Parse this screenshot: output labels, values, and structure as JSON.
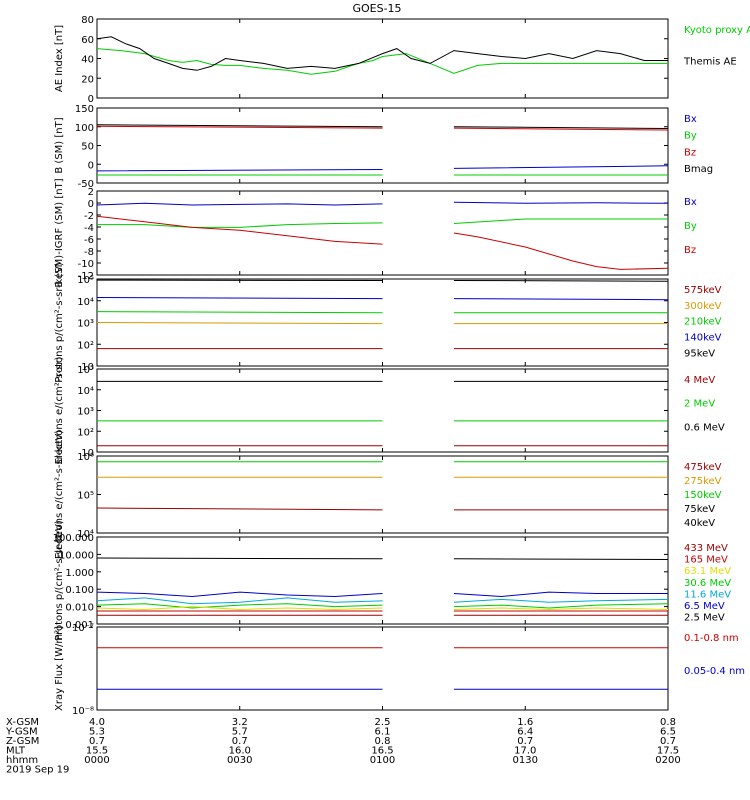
{
  "title": "GOES-15",
  "colors": {
    "black": "#000000",
    "green": "#00cc00",
    "red": "#cc0000",
    "blue": "#0000cc",
    "orange": "#dd9900",
    "yellow": "#dddd00",
    "cyan": "#00aadd",
    "purple": "#990099",
    "darkred": "#990000"
  },
  "chart_data": [
    {
      "type": "line",
      "ylabel": "AE Index [nT]",
      "ylim": [
        0,
        80
      ],
      "ticks": [
        "0",
        "20",
        "40",
        "60",
        "80"
      ],
      "legend": [
        "Kyoto proxy AE",
        "Themis AE"
      ],
      "series": [
        {
          "name": "Kyoto proxy AE",
          "color": "green",
          "x": [
            0,
            5,
            10,
            15,
            18,
            21,
            24,
            27,
            30,
            35,
            40,
            45,
            50,
            53,
            55,
            58,
            60,
            65,
            70,
            75,
            80,
            85,
            90,
            95,
            100,
            105,
            110,
            115,
            120
          ],
          "y": [
            50,
            48,
            45,
            38,
            36,
            38,
            34,
            33,
            33,
            30,
            28,
            24,
            27,
            32,
            35,
            38,
            42,
            45,
            35,
            25,
            33,
            35,
            35,
            35,
            35,
            35,
            35,
            35,
            35
          ]
        },
        {
          "name": "Themis AE",
          "color": "black",
          "x": [
            0,
            3,
            6,
            9,
            12,
            15,
            18,
            21,
            24,
            27,
            30,
            35,
            40,
            45,
            50,
            55,
            60,
            63,
            66,
            70,
            75,
            80,
            85,
            90,
            95,
            100,
            105,
            110,
            115,
            120
          ],
          "y": [
            60,
            62,
            55,
            50,
            40,
            35,
            30,
            28,
            32,
            40,
            38,
            35,
            30,
            32,
            30,
            35,
            45,
            50,
            40,
            35,
            48,
            45,
            42,
            40,
            45,
            40,
            48,
            45,
            38,
            38
          ]
        }
      ]
    },
    {
      "type": "line",
      "ylabel": "B (SM) [nT]",
      "ylim": [
        -55,
        150
      ],
      "ticks": [
        "-50",
        "0",
        "50",
        "100",
        "150"
      ],
      "legend": [
        "Bx",
        "By",
        "Bz",
        "Bmag"
      ],
      "gap": [
        60,
        75
      ],
      "series": [
        {
          "name": "Bz",
          "color": "red",
          "x": [
            0,
            60,
            75,
            120
          ],
          "y": [
            100,
            95,
            95,
            90
          ]
        },
        {
          "name": "Bmag",
          "color": "black",
          "x": [
            0,
            60,
            75,
            120
          ],
          "y": [
            104,
            99,
            99,
            94
          ]
        },
        {
          "name": "Bx",
          "color": "blue",
          "x": [
            0,
            60,
            75,
            120
          ],
          "y": [
            -22,
            -18,
            -15,
            -8
          ]
        },
        {
          "name": "By",
          "color": "green",
          "x": [
            0,
            60,
            75,
            120
          ],
          "y": [
            -33,
            -33,
            -33,
            -33
          ]
        }
      ]
    },
    {
      "type": "line",
      "ylabel": "B (SM)-IGRF (SM) [nT]",
      "ylim": [
        -12,
        3
      ],
      "ticks": [
        "-12",
        "-10",
        "-8",
        "-6",
        "-4",
        "-2",
        "0",
        "2"
      ],
      "legend": [
        "Bx",
        "By",
        "Bz"
      ],
      "gap": [
        60,
        75
      ],
      "series": [
        {
          "name": "Bx",
          "color": "blue",
          "x": [
            0,
            10,
            20,
            30,
            40,
            50,
            60,
            75,
            90,
            105,
            120
          ],
          "y": [
            0.5,
            0.8,
            0.5,
            0.6,
            0.7,
            0.5,
            0.7,
            1.0,
            0.8,
            0.9,
            0.8
          ]
        },
        {
          "name": "By",
          "color": "green",
          "x": [
            0,
            10,
            20,
            30,
            40,
            50,
            60,
            75,
            90,
            105,
            120
          ],
          "y": [
            -3,
            -3,
            -3.5,
            -3.5,
            -3,
            -2.8,
            -2.7,
            -2.8,
            -2,
            -2,
            -2
          ]
        },
        {
          "name": "Bz",
          "color": "red",
          "x": [
            0,
            10,
            20,
            30,
            40,
            50,
            60,
            75,
            80,
            90,
            100,
            105,
            110,
            120
          ],
          "y": [
            -1.5,
            -2.5,
            -3.5,
            -4,
            -5,
            -6,
            -6.5,
            -4.5,
            -5.2,
            -7,
            -9.5,
            -10.5,
            -11,
            -10.8
          ]
        }
      ]
    },
    {
      "type": "line",
      "ylabel": "Protons p/(cm²-s-sr-keV)",
      "log": true,
      "ylim": [
        1,
        5
      ],
      "ticks": [
        "10",
        "10²",
        "10³",
        "10⁴",
        "10⁵"
      ],
      "legend": [
        "575keV",
        "300keV",
        "210keV",
        "140keV",
        "95keV"
      ],
      "gap": [
        60,
        75
      ],
      "series": [
        {
          "name": "95keV",
          "color": "black",
          "x": [
            0,
            60,
            75,
            120
          ],
          "y": [
            4.95,
            4.93,
            4.93,
            4.9
          ]
        },
        {
          "name": "140keV",
          "color": "blue",
          "x": [
            0,
            60,
            75,
            120
          ],
          "y": [
            4.15,
            4.1,
            4.1,
            4.05
          ]
        },
        {
          "name": "210keV",
          "color": "green",
          "x": [
            0,
            60,
            75,
            120
          ],
          "y": [
            3.5,
            3.45,
            3.45,
            3.45
          ]
        },
        {
          "name": "300keV",
          "color": "orange",
          "x": [
            0,
            60,
            75,
            120
          ],
          "y": [
            3.0,
            2.95,
            2.95,
            2.95
          ]
        },
        {
          "name": "575keV",
          "color": "darkred",
          "x": [
            0,
            60,
            75,
            120
          ],
          "y": [
            1.8,
            1.8,
            1.8,
            1.8
          ]
        }
      ]
    },
    {
      "type": "line",
      "ylabel": "Electrons e/(cm²-s-sr)",
      "log": true,
      "ylim": [
        1,
        5
      ],
      "ticks": [
        "10",
        "10²",
        "10³",
        "10⁴",
        "10⁵"
      ],
      "legend": [
        "4 MeV",
        "2 MeV",
        "0.6 MeV"
      ],
      "gap": [
        60,
        75
      ],
      "series": [
        {
          "name": "0.6 MeV",
          "color": "black",
          "x": [
            0,
            60,
            75,
            120
          ],
          "y": [
            4.4,
            4.4,
            4.4,
            4.4
          ]
        },
        {
          "name": "2 MeV",
          "color": "green",
          "x": [
            0,
            60,
            75,
            120
          ],
          "y": [
            2.5,
            2.5,
            2.5,
            2.5
          ]
        },
        {
          "name": "4 MeV",
          "color": "darkred",
          "x": [
            0,
            60,
            75,
            120
          ],
          "y": [
            1.3,
            1.3,
            1.3,
            1.3
          ]
        }
      ]
    },
    {
      "type": "line",
      "ylabel": "Electrons e/(cm²-s-sr-keV)",
      "log": true,
      "ylim": [
        4,
        6
      ],
      "ticks": [
        "10⁴",
        "10⁵",
        "10⁶"
      ],
      "legend": [
        "475keV",
        "275keV",
        "150keV",
        "75keV",
        "40keV"
      ],
      "gap": [
        60,
        75
      ],
      "series": [
        {
          "name": "150keV",
          "color": "green",
          "x": [
            0,
            60,
            75,
            120
          ],
          "y": [
            5.85,
            5.85,
            5.85,
            5.85
          ]
        },
        {
          "name": "275keV",
          "color": "orange",
          "x": [
            0,
            60,
            75,
            120
          ],
          "y": [
            5.45,
            5.45,
            5.45,
            5.45
          ]
        },
        {
          "name": "475keV",
          "color": "darkred",
          "x": [
            0,
            60,
            75,
            120
          ],
          "y": [
            4.65,
            4.6,
            4.6,
            4.6
          ]
        }
      ]
    },
    {
      "type": "line",
      "ylabel": "Protons p/(cm²-s-sr-keV)",
      "log": true,
      "ylim": [
        -3,
        3
      ],
      "ticks": [
        "0.001",
        "0.010",
        "0.100",
        "1.000",
        "10.000",
        "100.000"
      ],
      "legend": [
        "433 MeV",
        "165 MeV",
        "63.1 MeV",
        "30.6 MeV",
        "11.6 MeV",
        "6.5 MeV",
        "2.5 MeV"
      ],
      "gap": [
        60,
        75
      ],
      "series": [
        {
          "name": "2.5 MeV",
          "color": "black",
          "x": [
            0,
            60,
            75,
            120
          ],
          "y": [
            1.55,
            1.5,
            1.5,
            1.45
          ]
        },
        {
          "name": "6.5 MeV",
          "color": "blue",
          "x": [
            0,
            10,
            20,
            30,
            40,
            50,
            60,
            75,
            85,
            95,
            105,
            120
          ],
          "y": [
            -0.8,
            -0.9,
            -1.1,
            -0.8,
            -1.0,
            -1.1,
            -0.9,
            -0.9,
            -1.1,
            -0.8,
            -0.9,
            -0.9
          ]
        },
        {
          "name": "11.6 MeV",
          "color": "cyan",
          "x": [
            0,
            10,
            20,
            30,
            40,
            50,
            60,
            75,
            85,
            95,
            105,
            120
          ],
          "y": [
            -1.4,
            -1.2,
            -1.6,
            -1.5,
            -1.2,
            -1.5,
            -1.4,
            -1.5,
            -1.3,
            -1.5,
            -1.4,
            -1.3
          ]
        },
        {
          "name": "30.6 MeV",
          "color": "green",
          "x": [
            0,
            10,
            20,
            30,
            40,
            50,
            60,
            75,
            85,
            95,
            105,
            120
          ],
          "y": [
            -1.7,
            -1.6,
            -1.9,
            -1.7,
            -1.6,
            -1.8,
            -1.7,
            -1.8,
            -1.7,
            -1.9,
            -1.7,
            -1.6
          ]
        },
        {
          "name": "63.1 MeV",
          "color": "yellow",
          "x": [
            0,
            10,
            20,
            30,
            40,
            50,
            60,
            75,
            85,
            95,
            105,
            120
          ],
          "y": [
            -1.9,
            -2.0,
            -1.8,
            -2.0,
            -1.9,
            -2.0,
            -1.9,
            -2.0,
            -1.9,
            -2.0,
            -1.9,
            -2.0
          ]
        },
        {
          "name": "165 MeV",
          "color": "red",
          "x": [
            0,
            60,
            75,
            120
          ],
          "y": [
            -2.1,
            -2.1,
            -2.1,
            -2.1
          ]
        },
        {
          "name": "433 MeV",
          "color": "darkred",
          "x": [
            0,
            60,
            75,
            120
          ],
          "y": [
            -2.4,
            -2.4,
            -2.4,
            -2.4
          ]
        }
      ]
    },
    {
      "type": "line",
      "ylabel": "Xray Flux [W/m²]",
      "log": true,
      "ylim": [
        -8,
        -7
      ],
      "ticks": [
        "10⁻⁸",
        "10⁻⁷"
      ],
      "legend": [
        "0.1-0.8 nm",
        "0.05-0.4 nm"
      ],
      "gap": [
        60,
        75
      ],
      "series": [
        {
          "name": "0.1-0.8 nm",
          "color": "red",
          "x": [
            0,
            60,
            75,
            120
          ],
          "y": [
            -7.25,
            -7.25,
            -7.25,
            -7.25
          ]
        },
        {
          "name": "0.05-0.4 nm",
          "color": "blue",
          "x": [
            0,
            60,
            75,
            120
          ],
          "y": [
            -7.75,
            -7.75,
            -7.75,
            -7.75
          ]
        }
      ]
    }
  ],
  "xaxis": {
    "row_labels": [
      "X-GSM",
      "Y-GSM",
      "Z-GSM",
      "MLT",
      "hhmm",
      "2019 Sep 19"
    ],
    "columns": [
      {
        "x": 0,
        "vals": [
          "4.0",
          "5.3",
          "0.7",
          "15.5",
          "0000"
        ]
      },
      {
        "x": 30,
        "vals": [
          "3.2",
          "5.7",
          "0.7",
          "16.0",
          "0030"
        ]
      },
      {
        "x": 60,
        "vals": [
          "2.5",
          "6.1",
          "0.8",
          "16.5",
          "0100"
        ]
      },
      {
        "x": 90,
        "vals": [
          "1.6",
          "6.4",
          "0.7",
          "17.0",
          "0130"
        ]
      },
      {
        "x": 120,
        "vals": [
          "0.8",
          "6.5",
          "0.7",
          "17.5",
          "0200"
        ]
      }
    ]
  }
}
